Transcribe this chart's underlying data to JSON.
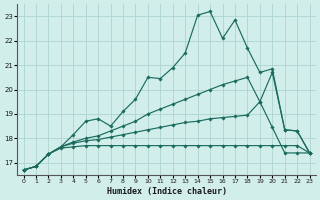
{
  "xlabel": "Humidex (Indice chaleur)",
  "bg_color": "#d1eeeb",
  "grid_color": "#aed4cf",
  "line_color": "#1a6b5e",
  "xlim": [
    -0.5,
    23.5
  ],
  "ylim": [
    16.5,
    23.5
  ],
  "yticks": [
    17,
    18,
    19,
    20,
    21,
    22,
    23
  ],
  "xticks": [
    0,
    1,
    2,
    3,
    4,
    5,
    6,
    7,
    8,
    9,
    10,
    11,
    12,
    13,
    14,
    15,
    16,
    17,
    18,
    19,
    20,
    21,
    22,
    23
  ],
  "line1_x": [
    0,
    1,
    2,
    3,
    4,
    5,
    6,
    7,
    8,
    9,
    10,
    11,
    12,
    13,
    14,
    15,
    16,
    17,
    18,
    19,
    20,
    21,
    22,
    23
  ],
  "line1_y": [
    16.7,
    16.85,
    17.35,
    17.65,
    18.15,
    18.7,
    18.8,
    18.5,
    19.1,
    19.6,
    20.5,
    20.45,
    20.9,
    21.5,
    23.05,
    23.2,
    22.1,
    22.85,
    21.7,
    20.7,
    20.85,
    18.35,
    18.3,
    17.4
  ],
  "line2_x": [
    0,
    1,
    2,
    3,
    4,
    5,
    6,
    7,
    8,
    9,
    10,
    11,
    12,
    13,
    14,
    15,
    16,
    17,
    18,
    19,
    20,
    21,
    22,
    23
  ],
  "line2_y": [
    16.7,
    16.85,
    17.35,
    17.65,
    17.85,
    18.0,
    18.1,
    18.3,
    18.5,
    18.7,
    19.0,
    19.2,
    19.4,
    19.6,
    19.8,
    20.0,
    20.2,
    20.35,
    20.5,
    19.5,
    20.7,
    18.35,
    18.3,
    17.4
  ],
  "line3_x": [
    0,
    1,
    2,
    3,
    4,
    5,
    6,
    7,
    8,
    9,
    10,
    11,
    12,
    13,
    14,
    15,
    16,
    17,
    18,
    19,
    20,
    21,
    22,
    23
  ],
  "line3_y": [
    16.7,
    16.85,
    17.35,
    17.65,
    17.8,
    17.9,
    17.95,
    18.05,
    18.15,
    18.25,
    18.35,
    18.45,
    18.55,
    18.65,
    18.7,
    18.8,
    18.85,
    18.9,
    18.95,
    19.5,
    18.45,
    17.4,
    17.4,
    17.4
  ],
  "line4_x": [
    0,
    1,
    2,
    3,
    4,
    5,
    6,
    7,
    8,
    9,
    10,
    11,
    12,
    13,
    14,
    15,
    16,
    17,
    18,
    19,
    20,
    21,
    22,
    23
  ],
  "line4_y": [
    16.7,
    16.85,
    17.35,
    17.6,
    17.65,
    17.7,
    17.7,
    17.7,
    17.7,
    17.7,
    17.7,
    17.7,
    17.7,
    17.7,
    17.7,
    17.7,
    17.7,
    17.7,
    17.7,
    17.7,
    17.7,
    17.7,
    17.7,
    17.4
  ]
}
